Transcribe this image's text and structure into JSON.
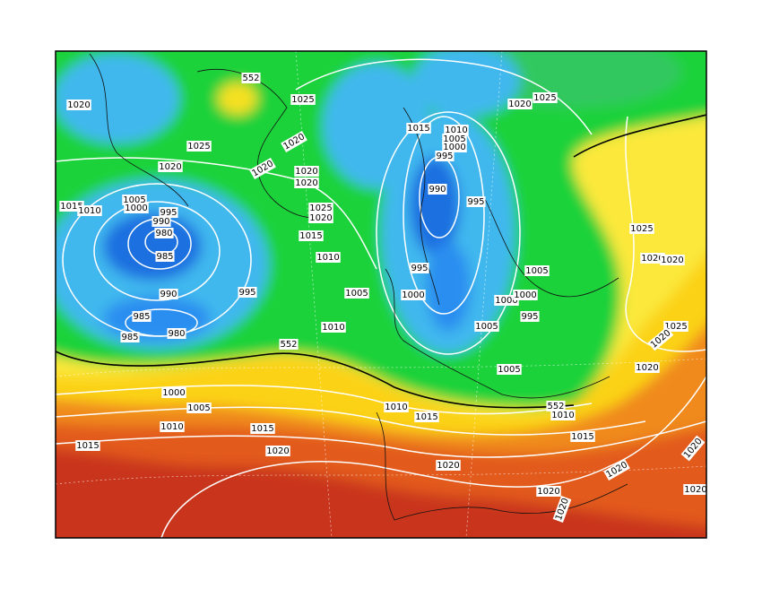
{
  "isobar_labels": [
    "1020",
    "552",
    "1025",
    "1025",
    "1020",
    "1020",
    "1020",
    "1020",
    "1020",
    "1015",
    "1010",
    "1005",
    "1000",
    "995",
    "990",
    "980",
    "985",
    "1025",
    "1020",
    "1015",
    "1010",
    "1005",
    "1010",
    "995",
    "990",
    "985",
    "980",
    "985",
    "552",
    "1000",
    "1005",
    "1010",
    "1015",
    "1015",
    "1020",
    "1015",
    "1010",
    "1005",
    "1000",
    "995",
    "990",
    "995",
    "995",
    "1000",
    "1005",
    "1000",
    "1000",
    "995",
    "1005",
    "1005",
    "1020",
    "1025",
    "1025",
    "1020",
    "1020",
    "1025",
    "1020",
    "1020",
    "1010",
    "1015",
    "552",
    "1010",
    "1015",
    "1020",
    "1020",
    "1020",
    "1020",
    "1020",
    "1020"
  ]
}
